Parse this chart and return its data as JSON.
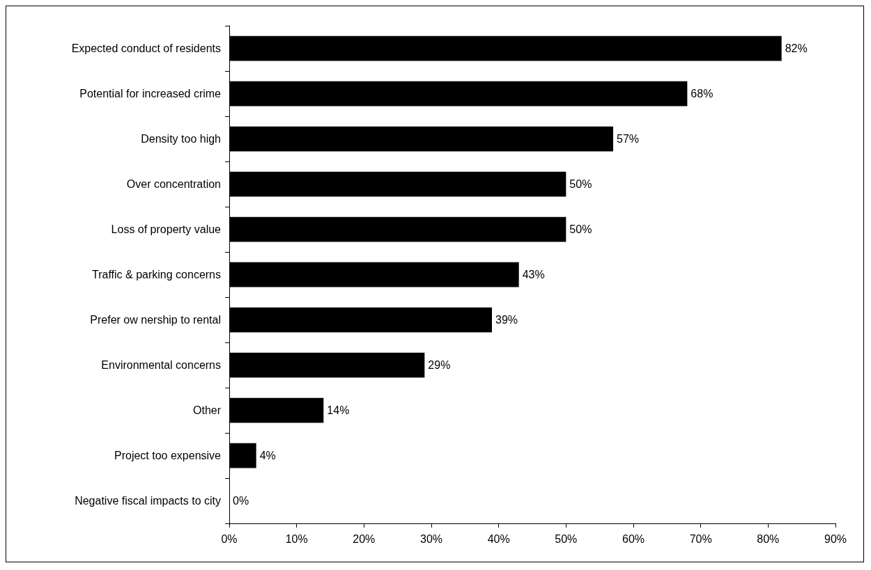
{
  "chart_data": {
    "type": "bar",
    "orientation": "horizontal",
    "categories": [
      "Expected conduct of residents",
      "Potential for increased crime",
      "Density too high",
      "Over concentration",
      "Loss of property value",
      "Traffic & parking concerns",
      "Prefer ow nership to rental",
      "Environmental concerns",
      "Other",
      "Project too expensive",
      "Negative fiscal impacts to city"
    ],
    "values": [
      82,
      68,
      57,
      50,
      50,
      43,
      39,
      29,
      14,
      4,
      0
    ],
    "value_labels": [
      "82%",
      "68%",
      "57%",
      "50%",
      "50%",
      "43%",
      "39%",
      "29%",
      "14%",
      "4%",
      "0%"
    ],
    "color": "#000000",
    "xlim": [
      0,
      90
    ],
    "xticks": [
      {
        "value": 0,
        "label": "0%"
      },
      {
        "value": 10,
        "label": "10%"
      },
      {
        "value": 20,
        "label": "20%"
      },
      {
        "value": 30,
        "label": "30%"
      },
      {
        "value": 40,
        "label": "40%"
      },
      {
        "value": 50,
        "label": "50%"
      },
      {
        "value": 60,
        "label": "60%"
      },
      {
        "value": 70,
        "label": "70%"
      },
      {
        "value": 80,
        "label": "80%"
      },
      {
        "value": 90,
        "label": "90%"
      }
    ],
    "grid": false
  }
}
